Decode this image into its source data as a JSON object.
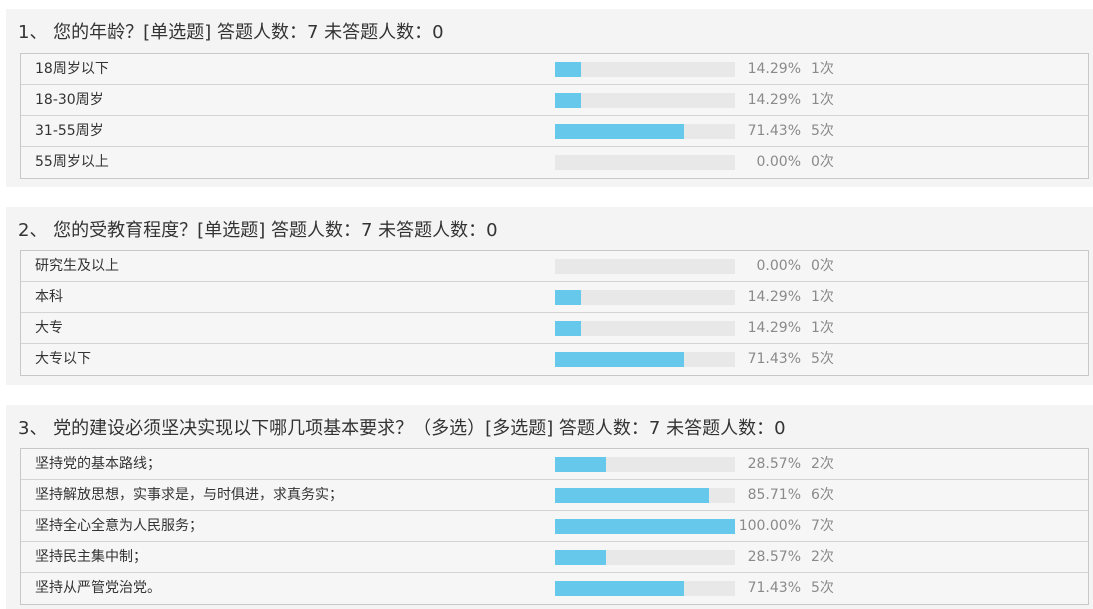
{
  "questions": [
    {
      "title": "1、 您的年龄？[单选题]  答题人数：7  未答题人数：0",
      "options": [
        {
          "label": "18周岁以下",
          "percent": "14.29%",
          "count": "1次",
          "fraction": 0.1429
        },
        {
          "label": "18-30周岁",
          "percent": "14.29%",
          "count": "1次",
          "fraction": 0.1429
        },
        {
          "label": "31-55周岁",
          "percent": "71.43%",
          "count": "5次",
          "fraction": 0.7143
        },
        {
          "label": "55周岁以上",
          "percent": "0.00%",
          "count": "0次",
          "fraction": 0.0
        }
      ]
    },
    {
      "title": "2、 您的受教育程度？[单选题]  答题人数：7  未答题人数：0",
      "options": [
        {
          "label": "研究生及以上",
          "percent": "0.00%",
          "count": "0次",
          "fraction": 0.0
        },
        {
          "label": "本科",
          "percent": "14.29%",
          "count": "1次",
          "fraction": 0.1429
        },
        {
          "label": "大专",
          "percent": "14.29%",
          "count": "1次",
          "fraction": 0.1429
        },
        {
          "label": "大专以下",
          "percent": "71.43%",
          "count": "5次",
          "fraction": 0.7143
        }
      ]
    },
    {
      "title": "3、 党的建设必须坚决实现以下哪几项基本要求？（多选）[多选题]  答题人数：7  未答题人数：0",
      "options": [
        {
          "label": "坚持党的基本路线；",
          "percent": "28.57%",
          "count": "2次",
          "fraction": 0.2857
        },
        {
          "label": "坚持解放思想，实事求是，与时俱进，求真务实；",
          "percent": "85.71%",
          "count": "6次",
          "fraction": 0.8571
        },
        {
          "label": "坚持全心全意为人民服务；",
          "percent": "100.00%",
          "count": "7次",
          "fraction": 1.0
        },
        {
          "label": "坚持民主集中制；",
          "percent": "28.57%",
          "count": "2次",
          "fraction": 0.2857
        },
        {
          "label": "坚持从严管党治党。",
          "percent": "71.43%",
          "count": "5次",
          "fraction": 0.7143
        }
      ]
    }
  ],
  "colors": {
    "bar_fill": "#66c8ea",
    "bar_track": "#e8e8e8",
    "panel_bg": "#f4f4f4"
  }
}
